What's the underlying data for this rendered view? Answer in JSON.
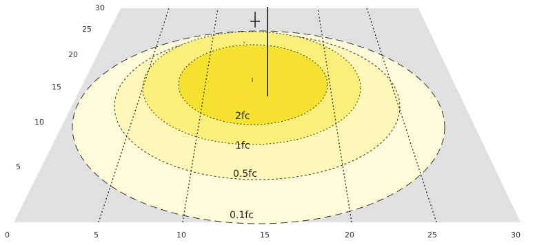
{
  "diagram": {
    "colors": {
      "ground": "#e0e0e0",
      "contour_0_1": "#fffbd8",
      "contour_0_5": "#fff7b8",
      "contour_1": "#fbef7c",
      "contour_2": "#f5e22e",
      "grid_line": "#222222",
      "contour_line": "#333333"
    },
    "x_ticks": [
      "0",
      "5",
      "10",
      "15",
      "20",
      "25",
      "30"
    ],
    "y_ticks": [
      "5",
      "10",
      "15",
      "20",
      "25",
      "30"
    ],
    "contours": [
      {
        "label": "0.1fc",
        "level": 0.1
      },
      {
        "label": "0.5fc",
        "level": 0.5
      },
      {
        "label": "1fc",
        "level": 1
      },
      {
        "label": "2fc",
        "level": 2
      }
    ]
  }
}
